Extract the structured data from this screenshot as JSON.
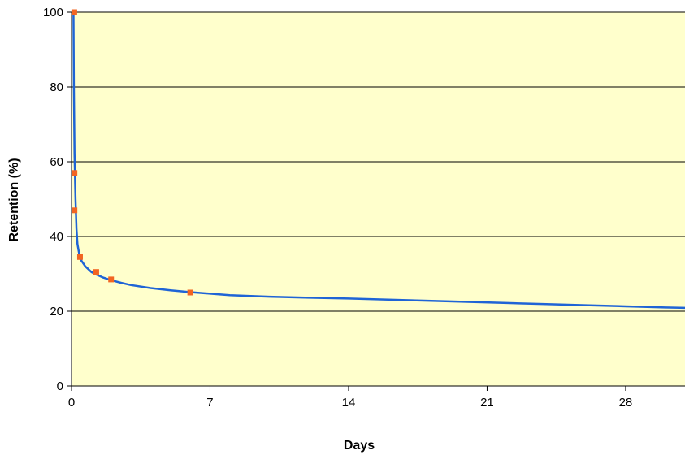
{
  "chart_data": {
    "type": "line",
    "xlabel": "Days",
    "ylabel": "Retention (%)",
    "xlim": [
      0,
      31
    ],
    "ylim": [
      0,
      100
    ],
    "xticks": [
      0,
      7,
      14,
      21,
      28
    ],
    "yticks": [
      0,
      20,
      40,
      60,
      80,
      100
    ],
    "grid": "horizontal",
    "plot_background": "#ffffcc",
    "series": [
      {
        "kind": "curve",
        "color": "#1f64d6",
        "x": [
          0.1,
          0.12,
          0.15,
          0.2,
          0.25,
          0.3,
          0.4,
          0.5,
          0.7,
          1.0,
          1.3,
          1.6,
          2.0,
          2.5,
          3.0,
          4.0,
          5.0,
          6.0,
          7.0,
          8.0,
          10.0,
          12.0,
          14.0,
          16.0,
          18.0,
          20.0,
          22.0,
          24.0,
          26.0,
          28.0,
          30.0,
          31.0
        ],
        "y": [
          100,
          80,
          62,
          50,
          42,
          38,
          35,
          33.5,
          32,
          30.5,
          29.7,
          29,
          28.3,
          27.6,
          27,
          26.2,
          25.6,
          25.1,
          24.7,
          24.3,
          23.9,
          23.6,
          23.4,
          23.1,
          22.8,
          22.5,
          22.2,
          21.9,
          21.6,
          21.3,
          21.0,
          20.9
        ]
      },
      {
        "kind": "points",
        "color": "#f26522",
        "x": [
          0.14,
          0.15,
          0.15,
          0.43,
          1.25,
          2.0,
          6.0
        ],
        "y": [
          100,
          57,
          47,
          34.5,
          30.5,
          28.5,
          25
        ]
      }
    ]
  }
}
